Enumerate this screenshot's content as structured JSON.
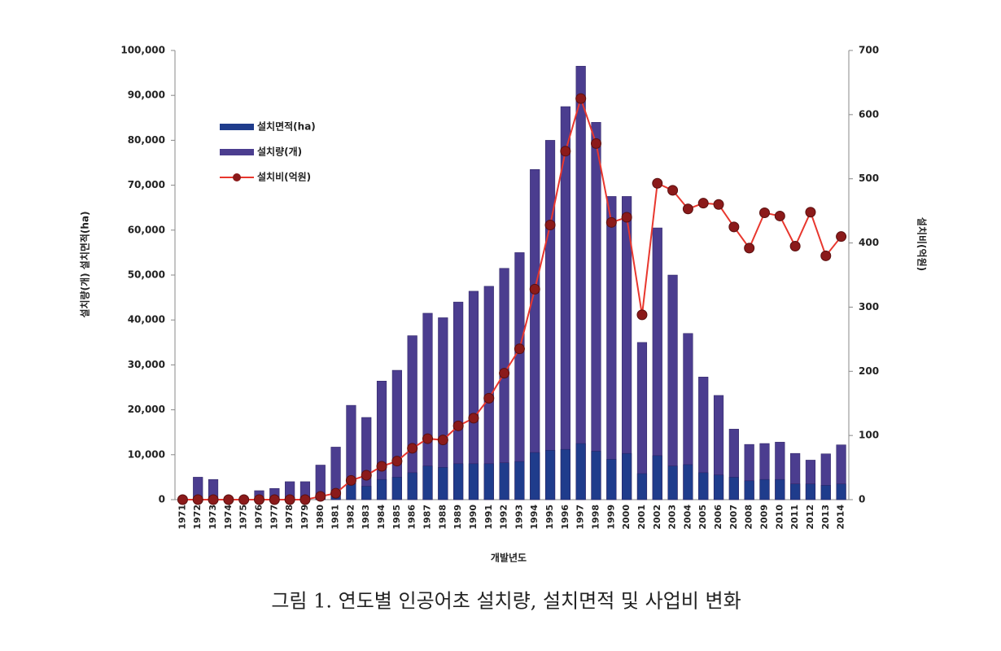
{
  "chart_data": {
    "type": "bar",
    "x_label": "개발년도",
    "y_label": "설치량(개) 설치면적(ha)",
    "y2_label": "설치비(억원)",
    "caption": "그림 1. 연도별 인공어초 설치량, 설치면적 및 사업비 변화",
    "categories": [
      "1971",
      "1972",
      "1973",
      "1974",
      "1975",
      "1976",
      "1977",
      "1978",
      "1979",
      "1980",
      "1981",
      "1982",
      "1983",
      "1984",
      "1985",
      "1986",
      "1987",
      "1988",
      "1989",
      "1990",
      "1991",
      "1992",
      "1993",
      "1994",
      "1995",
      "1996",
      "1997",
      "1998",
      "1999",
      "2000",
      "2001",
      "2002",
      "2003",
      "2004",
      "2005",
      "2006",
      "2007",
      "2008",
      "2009",
      "2010",
      "2011",
      "2012",
      "2013",
      "2014"
    ],
    "series": [
      {
        "name": "설치면적(ha)",
        "type": "bar",
        "color": "#1f3c8c",
        "values": [
          0,
          200,
          200,
          0,
          0,
          300,
          400,
          500,
          600,
          1000,
          2000,
          3500,
          3000,
          4500,
          5000,
          6000,
          7500,
          7200,
          8000,
          8000,
          8000,
          8200,
          8500,
          10500,
          11000,
          11200,
          12500,
          10800,
          9000,
          10300,
          5800,
          9800,
          7500,
          7800,
          6000,
          5500,
          5000,
          4200,
          4500,
          4500,
          3500,
          3500,
          3200,
          3500
        ]
      },
      {
        "name": "설치량(개)",
        "type": "bar",
        "color": "#4b3d8f",
        "values": [
          0,
          5000,
          4500,
          0,
          0,
          2000,
          2500,
          4000,
          4000,
          7700,
          11700,
          21000,
          18300,
          26400,
          28800,
          36500,
          41500,
          40500,
          44000,
          46400,
          47500,
          51500,
          55000,
          73500,
          80000,
          87500,
          96500,
          84000,
          67500,
          67500,
          35000,
          60500,
          50000,
          37000,
          27300,
          23200,
          15700,
          12300,
          12500,
          12800,
          10300,
          8800,
          10200,
          12200
        ]
      },
      {
        "name": "설치비(억원)",
        "type": "line",
        "axis": "y2",
        "color": "#e8372e",
        "marker_color": "#8b1a1a",
        "values": [
          0,
          0,
          0,
          0,
          0,
          0,
          0,
          0,
          0,
          5,
          10,
          30,
          38,
          52,
          60,
          80,
          95,
          93,
          115,
          127,
          158,
          197,
          235,
          328,
          428,
          543,
          625,
          555,
          432,
          440,
          288,
          493,
          482,
          453,
          462,
          460,
          425,
          392,
          447,
          442,
          395,
          448,
          380,
          410
        ]
      }
    ],
    "ylim": [
      0,
      100000
    ],
    "yticks": [
      0,
      {
        "value": 10000,
        "label": "10,000"
      },
      {
        "value": 20000,
        "label": "20,000"
      },
      {
        "value": 30000,
        "label": "30,000"
      },
      {
        "value": 40000,
        "label": "40,000"
      },
      {
        "value": 50000,
        "label": "50,000"
      },
      {
        "value": 60000,
        "label": "60,000"
      },
      {
        "value": 70000,
        "label": "70,000"
      },
      {
        "value": 80000,
        "label": "80,000"
      },
      {
        "value": 90000,
        "label": "90,000"
      },
      {
        "value": 100000,
        "label": "100,000"
      }
    ],
    "y2lim": [
      0,
      700
    ],
    "y2ticks": [
      0,
      100,
      200,
      300,
      400,
      500,
      600,
      700
    ],
    "grid": false,
    "legend": "upper-left"
  }
}
